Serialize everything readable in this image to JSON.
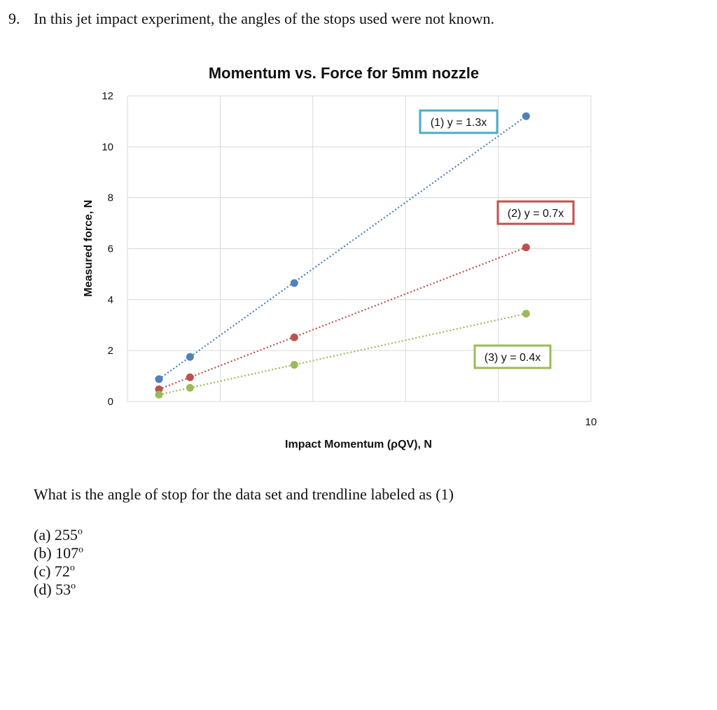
{
  "question": {
    "number": "9.",
    "text": "In this jet impact experiment, the angles of the stops used were not known.",
    "prompt": "What is the angle of stop for the data set and trendline labeled as (1)",
    "options": [
      {
        "label": "(a) 255",
        "unit": "o"
      },
      {
        "label": "(b) 107",
        "unit": "o"
      },
      {
        "label": "(c) 72",
        "unit": "o"
      },
      {
        "label": "(d) 53",
        "unit": "o"
      }
    ]
  },
  "chart_data": {
    "type": "scatter",
    "title": "Momentum vs. Force for 5mm nozzle",
    "xlabel": "Impact Momentum (ρQV), N",
    "ylabel": "Measured force, N",
    "xlim": [
      0,
      10
    ],
    "ylim": [
      0,
      12
    ],
    "x_tick_labels": [
      "10"
    ],
    "y_tick_labels": [
      "0",
      "2",
      "4",
      "6",
      "8",
      "10",
      "12"
    ],
    "grid": true,
    "legend": "none",
    "colors": {
      "series1": "#4f81bd",
      "series2": "#c0504d",
      "series3": "#9bbb59",
      "grid": "#d9d9d9"
    },
    "series": [
      {
        "label": "(1) y = 1.3x",
        "color": "#4f81bd",
        "box_color": "#4bacc6",
        "x": [
          0.68,
          1.35,
          3.6,
          8.6
        ],
        "y": [
          0.88,
          1.75,
          4.65,
          11.2
        ]
      },
      {
        "label": "(2) y = 0.7x",
        "color": "#c0504d",
        "box_color": "#c0504d",
        "x": [
          0.68,
          1.35,
          3.6,
          8.6
        ],
        "y": [
          0.48,
          0.95,
          2.52,
          6.05
        ]
      },
      {
        "label": "(3) y = 0.4x",
        "color": "#9bbb59",
        "box_color": "#9bbb59",
        "x": [
          0.68,
          1.35,
          3.6,
          8.6
        ],
        "y": [
          0.27,
          0.54,
          1.44,
          3.45
        ]
      }
    ]
  }
}
